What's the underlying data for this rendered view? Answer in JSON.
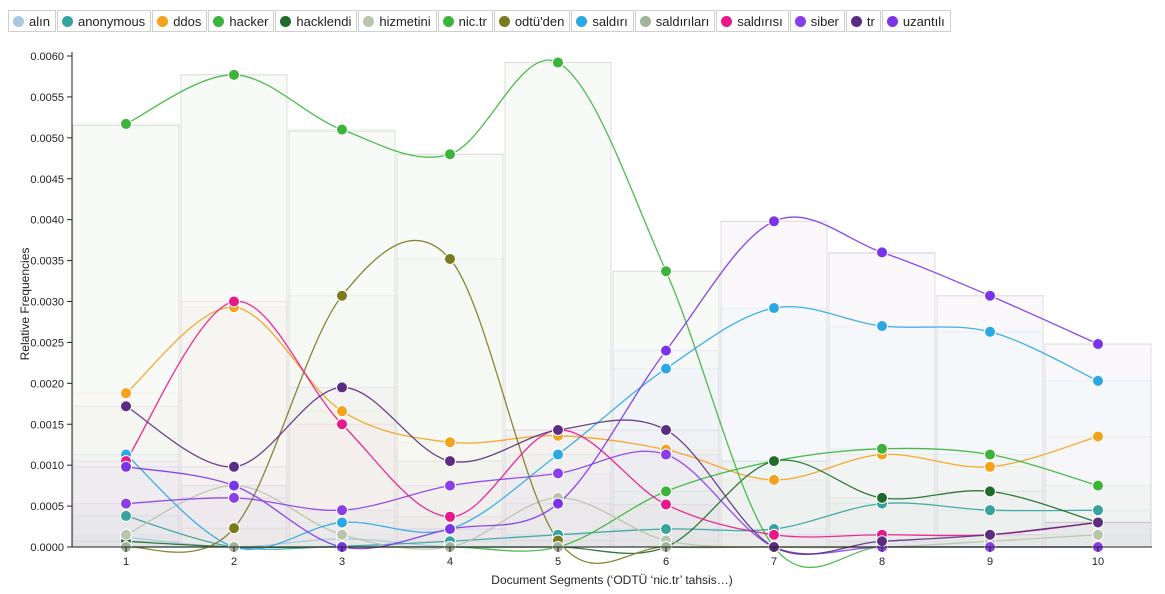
{
  "chart_data": {
    "type": "line",
    "title": "",
    "xlabel": "Document Segments (‘ODTÜ ‘nic.tr’ tahsis…)",
    "ylabel": "Relative Frequencies",
    "x": [
      1,
      2,
      3,
      4,
      5,
      6,
      7,
      8,
      9,
      10
    ],
    "ylim": [
      0,
      0.006
    ],
    "yticks": [
      "0.0000",
      "0.0005",
      "0.0010",
      "0.0015",
      "0.0020",
      "0.0025",
      "0.0030",
      "0.0035",
      "0.0040",
      "0.0045",
      "0.0050",
      "0.0055",
      "0.0060"
    ],
    "grid": false,
    "legend_position": "top",
    "bars_background": [
      0.00515,
      0.00577,
      0.00508,
      0.0048,
      0.00592,
      0.00337,
      0.00398,
      0.00359,
      0.00307,
      0.00248
    ],
    "series": [
      {
        "name": "alın",
        "color": "#a6c8e2",
        "values": [
          0.00012,
          0.0,
          0.0001,
          0.0,
          0.0,
          0.0,
          0.0,
          0.0,
          0.0,
          0.0
        ]
      },
      {
        "name": "anonymous",
        "color": "#35a3a0",
        "values": [
          0.00038,
          0.0,
          1e-05,
          7e-05,
          0.00015,
          0.00022,
          0.00022,
          0.00053,
          0.00045,
          0.00045
        ]
      },
      {
        "name": "ddos",
        "color": "#f3a21a",
        "values": [
          0.00188,
          0.00293,
          0.00166,
          0.00128,
          0.00136,
          0.00119,
          0.00082,
          0.00113,
          0.00098,
          0.00135
        ]
      },
      {
        "name": "hacker",
        "color": "#3cb43c",
        "values": [
          0.0,
          0.0,
          0.0,
          0.0,
          0.0,
          0.00068,
          0.00105,
          0.0012,
          0.00113,
          0.00075
        ]
      },
      {
        "name": "hacklendi",
        "color": "#1f6b2b",
        "values": [
          7e-05,
          0.0,
          0.0,
          0.0,
          0.0,
          0.0,
          0.00105,
          0.0006,
          0.00068,
          0.0003
        ]
      },
      {
        "name": "hizmetini",
        "color": "#b8c4ac",
        "values": [
          0.00015,
          0.00075,
          0.00015,
          0.0,
          0.0006,
          8e-05,
          0.0,
          0.0,
          7e-05,
          0.00015
        ]
      },
      {
        "name": "nic.tr",
        "color": "#3cb43c",
        "values": [
          0.00517,
          0.00577,
          0.0051,
          0.0048,
          0.00592,
          0.00337,
          0.0,
          0.0,
          0.0,
          0.0
        ]
      },
      {
        "name": "odtü'den",
        "color": "#7a7a20",
        "values": [
          0.0,
          0.00023,
          0.00307,
          0.00352,
          8e-05,
          0.0,
          0.0,
          0.0,
          0.0,
          0.0
        ]
      },
      {
        "name": "saldırı",
        "color": "#2aa8e6",
        "values": [
          0.00113,
          0.0,
          0.0003,
          0.00022,
          0.00113,
          0.00218,
          0.00292,
          0.0027,
          0.00263,
          0.00203
        ]
      },
      {
        "name": "saldırıları",
        "color": "#a0b49a",
        "values": [
          0.0,
          0.0,
          0.0,
          0.0,
          0.0,
          0.0,
          0.0,
          0.0,
          0.0,
          0.0
        ]
      },
      {
        "name": "saldırısı",
        "color": "#e8178a",
        "values": [
          0.00105,
          0.003,
          0.0015,
          0.00037,
          0.00143,
          0.00052,
          0.00015,
          0.00015,
          0.00015,
          0.0003
        ]
      },
      {
        "name": "siber",
        "color": "#8a3ee8",
        "values": [
          0.00053,
          0.0006,
          0.00045,
          0.00075,
          0.0009,
          0.00113,
          0.0,
          0.0,
          0.0,
          0.0
        ]
      },
      {
        "name": "tr",
        "color": "#5b2d82",
        "values": [
          0.00172,
          0.00098,
          0.00195,
          0.00105,
          0.00143,
          0.00143,
          0.0,
          7e-05,
          0.00015,
          0.0003
        ]
      },
      {
        "name": "uzantılı",
        "color": "#7b33e8",
        "values": [
          0.00098,
          0.00075,
          0.0,
          0.00022,
          0.00053,
          0.0024,
          0.00398,
          0.0036,
          0.00307,
          0.00248
        ]
      }
    ]
  }
}
